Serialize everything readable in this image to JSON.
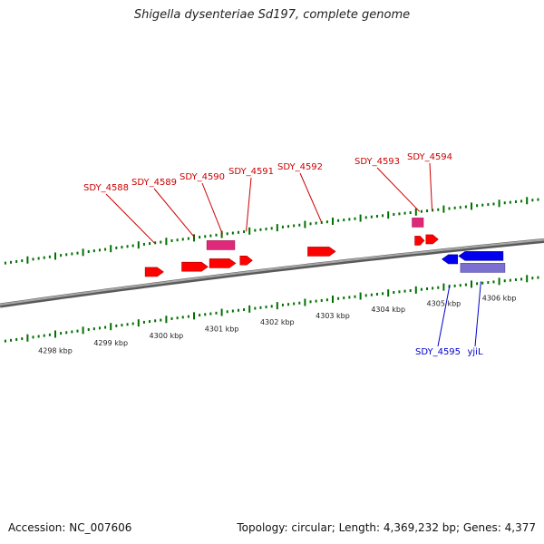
{
  "title": "Shigella dysenteriae Sd197, complete genome",
  "footer": {
    "accession": "Accession: NC_007606",
    "topology": "Topology: circular; Length: 4,369,232 bp; Genes: 4,377"
  },
  "colors": {
    "forward_gene": "#ff0000",
    "forward_cds": "#e0287a",
    "reverse_gene": "#0000ee",
    "reverse_cds": "#7b6fd0",
    "backbone": "#808080",
    "ticks": "#007000",
    "forward_label": "#cc0000",
    "reverse_label": "#0000cc"
  },
  "axis": {
    "unit": "kbp",
    "ticks": [
      {
        "kbp": 4298,
        "label": "4298 kbp"
      },
      {
        "kbp": 4299,
        "label": "4299 kbp"
      },
      {
        "kbp": 4300,
        "label": "4300 kbp"
      },
      {
        "kbp": 4301,
        "label": "4301 kbp"
      },
      {
        "kbp": 4302,
        "label": "4302 kbp"
      },
      {
        "kbp": 4303,
        "label": "4303 kbp"
      },
      {
        "kbp": 4304,
        "label": "4304 kbp"
      },
      {
        "kbp": 4305,
        "label": "4305 kbp"
      },
      {
        "kbp": 4306,
        "label": "4306 kbp"
      }
    ]
  },
  "features": [
    {
      "label": "SDY_4588",
      "strand": "+",
      "type": "gene",
      "start": 4299.62,
      "end": 4299.95
    },
    {
      "label": "SDY_4589",
      "strand": "+",
      "type": "gene",
      "start": 4300.28,
      "end": 4300.75
    },
    {
      "label": "SDY_4590",
      "strand": "+",
      "type": "gene+cds",
      "start": 4300.78,
      "end": 4301.25
    },
    {
      "label": "SDY_4591",
      "strand": "+",
      "type": "gene",
      "start": 4301.33,
      "end": 4301.55
    },
    {
      "label": "SDY_4592",
      "strand": "+",
      "type": "gene",
      "start": 4302.55,
      "end": 4303.05
    },
    {
      "label": "SDY_4593",
      "strand": "+",
      "type": "gene+cds",
      "start": 4304.48,
      "end": 4304.65
    },
    {
      "label": "SDY_4594",
      "strand": "+",
      "type": "gene",
      "start": 4304.68,
      "end": 4304.9
    },
    {
      "label": "SDY_4595",
      "strand": "-",
      "type": "gene",
      "start": 4304.97,
      "end": 4305.25
    },
    {
      "label": "yjiL",
      "strand": "-",
      "type": "gene+cds",
      "start": 4305.27,
      "end": 4306.07
    }
  ]
}
